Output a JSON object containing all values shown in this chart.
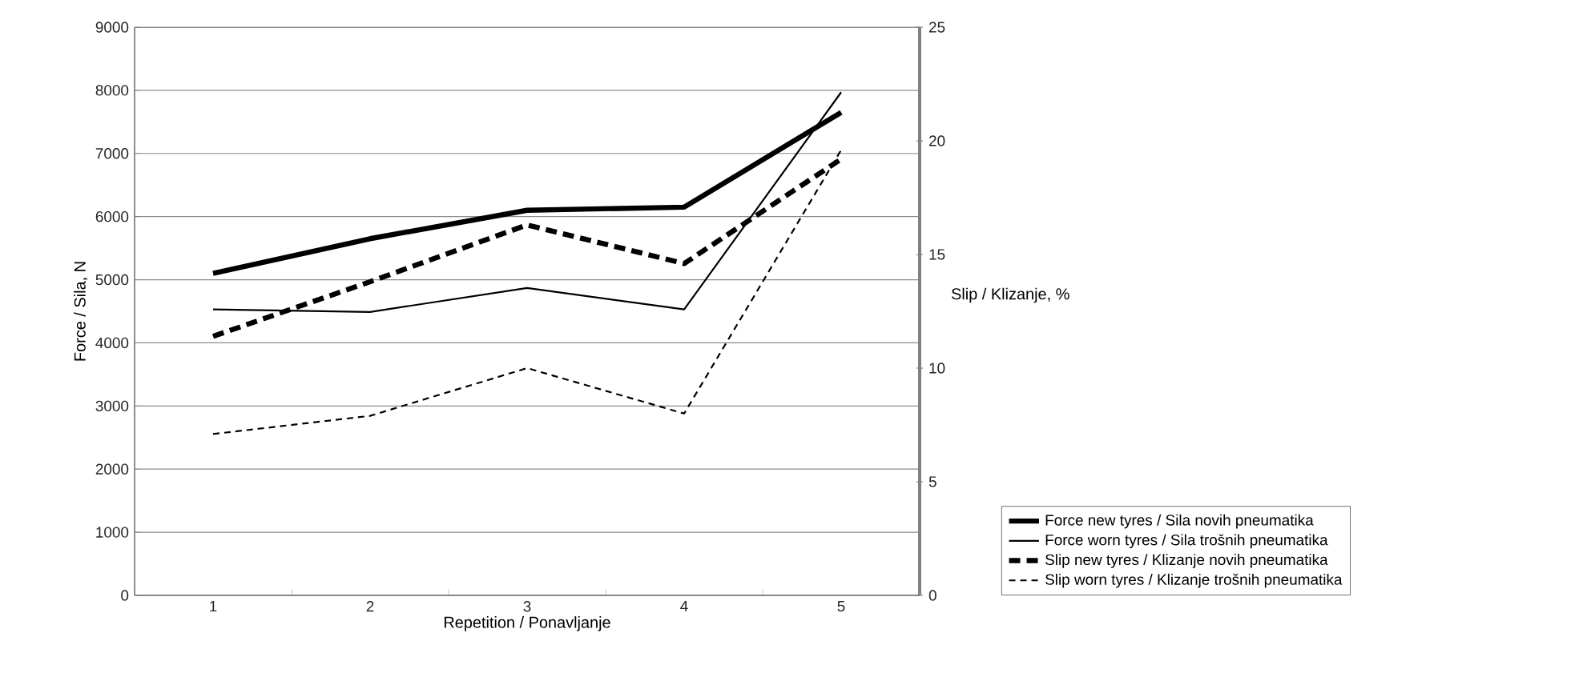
{
  "chart_data": {
    "type": "line",
    "xlabel": "Repetition / Ponavljanje",
    "ylabel": "Force / Sila, N",
    "y2label": "Slip / Klizanje, %",
    "categories": [
      "1",
      "2",
      "3",
      "4",
      "5"
    ],
    "ylim": [
      0,
      9000
    ],
    "yticks": [
      0,
      1000,
      2000,
      3000,
      4000,
      5000,
      6000,
      7000,
      8000,
      9000
    ],
    "y2lim": [
      0,
      25
    ],
    "y2ticks": [
      0,
      5,
      10,
      15,
      20,
      25
    ],
    "grid": "y",
    "legend": "bottom right",
    "marker": "none",
    "series": [
      {
        "name": "Force new tyres / Sila novih pneumatika",
        "color": "#000000",
        "line_style": "solid",
        "values": [
          5100,
          5650,
          6100,
          6150,
          7650
        ]
      },
      {
        "name": "Force worn tyres / Sila trošnih pneumatika",
        "color": "#000000",
        "line_style": "solid",
        "values": [
          4530,
          4490,
          4870,
          4530,
          7970
        ]
      },
      {
        "name": "Slip new tyres / Klizanje novih pneumatika",
        "color": "#000000",
        "line_style": "dashed",
        "axis": "y2",
        "values": [
          11.4,
          13.8,
          16.3,
          14.6,
          19.2
        ]
      },
      {
        "name": "Slip worn tyres / Klizanje trošnih pneumatika",
        "color": "#000000",
        "line_style": "dashed",
        "axis": "y2",
        "values": [
          7.1,
          7.9,
          10.0,
          8.0,
          19.6
        ]
      }
    ]
  }
}
